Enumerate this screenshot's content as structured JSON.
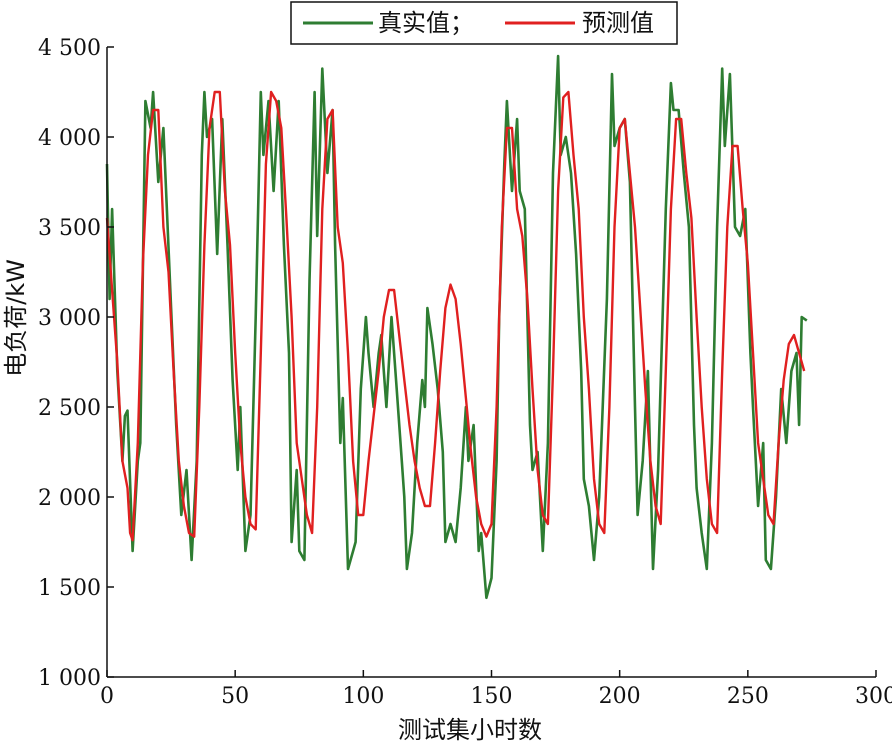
{
  "chart_data": {
    "type": "line",
    "xlabel": "测试集小时数",
    "ylabel": "电负荷/kW",
    "xlim": [
      0,
      300
    ],
    "ylim": [
      1000,
      4500
    ],
    "x_ticks": [
      0,
      50,
      100,
      150,
      200,
      250,
      300
    ],
    "x_tick_labels": [
      "0",
      "50",
      "100",
      "150",
      "200",
      "250",
      "300"
    ],
    "y_ticks": [
      1000,
      1500,
      2000,
      2500,
      3000,
      3500,
      4000,
      4500
    ],
    "y_tick_labels": [
      "1 000",
      "1 500",
      "2 000",
      "2 500",
      "3 000",
      "3 500",
      "4 000",
      "4 500"
    ],
    "grid": false,
    "legend_position": "top-center",
    "colors": {
      "actual": "#2e7d32",
      "predicted": "#e02020",
      "axis": "#111111"
    },
    "series": [
      {
        "name": "真实值；",
        "color": "#2e7d32",
        "keypoints": [
          [
            0,
            3850
          ],
          [
            1,
            3100
          ],
          [
            2,
            3600
          ],
          [
            4,
            2700
          ],
          [
            6,
            2200
          ],
          [
            7,
            2450
          ],
          [
            8,
            2480
          ],
          [
            10,
            1700
          ],
          [
            12,
            2200
          ],
          [
            13,
            2300
          ],
          [
            15,
            4200
          ],
          [
            17,
            4050
          ],
          [
            18,
            4250
          ],
          [
            20,
            3750
          ],
          [
            22,
            4050
          ],
          [
            25,
            3050
          ],
          [
            27,
            2400
          ],
          [
            29,
            1900
          ],
          [
            31,
            2150
          ],
          [
            33,
            1650
          ],
          [
            35,
            2200
          ],
          [
            37,
            3900
          ],
          [
            38,
            4250
          ],
          [
            39,
            4000
          ],
          [
            41,
            4100
          ],
          [
            43,
            3350
          ],
          [
            45,
            4100
          ],
          [
            47,
            3400
          ],
          [
            49,
            2650
          ],
          [
            51,
            2150
          ],
          [
            52,
            2500
          ],
          [
            54,
            1700
          ],
          [
            56,
            1900
          ],
          [
            58,
            3000
          ],
          [
            60,
            4250
          ],
          [
            61,
            3900
          ],
          [
            63,
            4200
          ],
          [
            65,
            3700
          ],
          [
            67,
            4200
          ],
          [
            69,
            3400
          ],
          [
            71,
            2800
          ],
          [
            72,
            1750
          ],
          [
            74,
            2150
          ],
          [
            75,
            1700
          ],
          [
            77,
            1650
          ],
          [
            79,
            3200
          ],
          [
            81,
            4250
          ],
          [
            82,
            3450
          ],
          [
            84,
            4380
          ],
          [
            86,
            3800
          ],
          [
            88,
            4150
          ],
          [
            89,
            3400
          ],
          [
            91,
            2300
          ],
          [
            92,
            2550
          ],
          [
            94,
            1600
          ],
          [
            96,
            1700
          ],
          [
            97,
            1750
          ],
          [
            99,
            2600
          ],
          [
            101,
            3000
          ],
          [
            102,
            2800
          ],
          [
            104,
            2500
          ],
          [
            106,
            2800
          ],
          [
            107,
            2900
          ],
          [
            108,
            2700
          ],
          [
            109,
            2500
          ],
          [
            111,
            3000
          ],
          [
            113,
            2600
          ],
          [
            115,
            2200
          ],
          [
            116,
            2000
          ],
          [
            117,
            1600
          ],
          [
            119,
            1800
          ],
          [
            121,
            2300
          ],
          [
            123,
            2650
          ],
          [
            124,
            2500
          ],
          [
            125,
            3050
          ],
          [
            127,
            2850
          ],
          [
            129,
            2600
          ],
          [
            131,
            2250
          ],
          [
            132,
            1750
          ],
          [
            134,
            1850
          ],
          [
            136,
            1750
          ],
          [
            138,
            2050
          ],
          [
            140,
            2500
          ],
          [
            141,
            2200
          ],
          [
            143,
            2400
          ],
          [
            145,
            1700
          ],
          [
            146,
            1800
          ],
          [
            148,
            1440
          ],
          [
            150,
            1550
          ],
          [
            152,
            2200
          ],
          [
            153,
            3000
          ],
          [
            155,
            3850
          ],
          [
            156,
            4200
          ],
          [
            158,
            3700
          ],
          [
            160,
            4100
          ],
          [
            161,
            3700
          ],
          [
            163,
            3600
          ],
          [
            165,
            2400
          ],
          [
            166,
            2150
          ],
          [
            168,
            2250
          ],
          [
            170,
            1700
          ],
          [
            172,
            2300
          ],
          [
            174,
            3800
          ],
          [
            176,
            4450
          ],
          [
            177,
            3900
          ],
          [
            179,
            4000
          ],
          [
            181,
            3800
          ],
          [
            183,
            3350
          ],
          [
            185,
            2700
          ],
          [
            186,
            2100
          ],
          [
            188,
            1950
          ],
          [
            190,
            1650
          ],
          [
            192,
            2000
          ],
          [
            195,
            3100
          ],
          [
            197,
            4350
          ],
          [
            198,
            3950
          ],
          [
            200,
            4050
          ],
          [
            202,
            4100
          ],
          [
            204,
            3750
          ],
          [
            206,
            2500
          ],
          [
            207,
            1900
          ],
          [
            209,
            2200
          ],
          [
            211,
            2700
          ],
          [
            213,
            1600
          ],
          [
            215,
            2150
          ],
          [
            218,
            3600
          ],
          [
            220,
            4300
          ],
          [
            221,
            4150
          ],
          [
            223,
            4150
          ],
          [
            225,
            3800
          ],
          [
            227,
            3500
          ],
          [
            229,
            2400
          ],
          [
            230,
            2050
          ],
          [
            232,
            1800
          ],
          [
            234,
            1600
          ],
          [
            236,
            2300
          ],
          [
            238,
            3500
          ],
          [
            240,
            4380
          ],
          [
            241,
            3950
          ],
          [
            243,
            4350
          ],
          [
            245,
            3500
          ],
          [
            247,
            3450
          ],
          [
            249,
            3600
          ],
          [
            251,
            2800
          ],
          [
            252,
            2500
          ],
          [
            254,
            1950
          ],
          [
            256,
            2300
          ],
          [
            257,
            1650
          ],
          [
            259,
            1600
          ],
          [
            261,
            2000
          ],
          [
            263,
            2600
          ],
          [
            265,
            2300
          ],
          [
            267,
            2700
          ],
          [
            269,
            2800
          ],
          [
            270,
            2400
          ],
          [
            271,
            3000
          ],
          [
            273,
            2980
          ]
        ]
      },
      {
        "name": "预测值",
        "color": "#e02020",
        "keypoints": [
          [
            0,
            3550
          ],
          [
            2,
            3150
          ],
          [
            4,
            2750
          ],
          [
            6,
            2200
          ],
          [
            8,
            2050
          ],
          [
            9,
            1800
          ],
          [
            10,
            1760
          ],
          [
            12,
            2300
          ],
          [
            14,
            3300
          ],
          [
            16,
            3900
          ],
          [
            18,
            4150
          ],
          [
            20,
            4150
          ],
          [
            22,
            3500
          ],
          [
            24,
            3250
          ],
          [
            26,
            2700
          ],
          [
            28,
            2200
          ],
          [
            30,
            1950
          ],
          [
            32,
            1800
          ],
          [
            34,
            1780
          ],
          [
            36,
            2500
          ],
          [
            38,
            3400
          ],
          [
            40,
            4050
          ],
          [
            42,
            4250
          ],
          [
            44,
            4250
          ],
          [
            46,
            3700
          ],
          [
            48,
            3400
          ],
          [
            50,
            2800
          ],
          [
            52,
            2300
          ],
          [
            54,
            2000
          ],
          [
            56,
            1850
          ],
          [
            58,
            1820
          ],
          [
            60,
            2800
          ],
          [
            62,
            3850
          ],
          [
            64,
            4250
          ],
          [
            66,
            4200
          ],
          [
            68,
            4050
          ],
          [
            70,
            3550
          ],
          [
            72,
            3000
          ],
          [
            74,
            2300
          ],
          [
            76,
            2100
          ],
          [
            78,
            1900
          ],
          [
            80,
            1800
          ],
          [
            82,
            2500
          ],
          [
            84,
            3600
          ],
          [
            86,
            4100
          ],
          [
            88,
            4150
          ],
          [
            90,
            3500
          ],
          [
            92,
            3300
          ],
          [
            94,
            2800
          ],
          [
            96,
            2200
          ],
          [
            98,
            1900
          ],
          [
            100,
            1900
          ],
          [
            102,
            2200
          ],
          [
            104,
            2450
          ],
          [
            106,
            2700
          ],
          [
            108,
            3000
          ],
          [
            110,
            3150
          ],
          [
            112,
            3150
          ],
          [
            114,
            2900
          ],
          [
            116,
            2650
          ],
          [
            118,
            2400
          ],
          [
            120,
            2200
          ],
          [
            122,
            2050
          ],
          [
            124,
            1950
          ],
          [
            126,
            1950
          ],
          [
            128,
            2300
          ],
          [
            130,
            2700
          ],
          [
            132,
            3050
          ],
          [
            134,
            3180
          ],
          [
            136,
            3100
          ],
          [
            138,
            2850
          ],
          [
            140,
            2550
          ],
          [
            142,
            2250
          ],
          [
            144,
            2000
          ],
          [
            146,
            1850
          ],
          [
            148,
            1780
          ],
          [
            150,
            1850
          ],
          [
            152,
            2500
          ],
          [
            154,
            3500
          ],
          [
            156,
            4050
          ],
          [
            158,
            4050
          ],
          [
            160,
            3600
          ],
          [
            162,
            3450
          ],
          [
            164,
            3100
          ],
          [
            166,
            2600
          ],
          [
            168,
            2150
          ],
          [
            170,
            1900
          ],
          [
            172,
            1850
          ],
          [
            174,
            2700
          ],
          [
            176,
            3700
          ],
          [
            178,
            4220
          ],
          [
            180,
            4250
          ],
          [
            182,
            3900
          ],
          [
            184,
            3600
          ],
          [
            186,
            3000
          ],
          [
            188,
            2600
          ],
          [
            190,
            2100
          ],
          [
            192,
            1850
          ],
          [
            194,
            1800
          ],
          [
            196,
            2500
          ],
          [
            198,
            3500
          ],
          [
            200,
            4050
          ],
          [
            202,
            4100
          ],
          [
            204,
            3800
          ],
          [
            206,
            3500
          ],
          [
            208,
            3050
          ],
          [
            210,
            2600
          ],
          [
            212,
            2200
          ],
          [
            214,
            1950
          ],
          [
            216,
            1850
          ],
          [
            218,
            2700
          ],
          [
            220,
            3600
          ],
          [
            222,
            4100
          ],
          [
            224,
            4100
          ],
          [
            226,
            3800
          ],
          [
            228,
            3550
          ],
          [
            230,
            3000
          ],
          [
            232,
            2500
          ],
          [
            234,
            2100
          ],
          [
            236,
            1850
          ],
          [
            238,
            1800
          ],
          [
            240,
            2700
          ],
          [
            242,
            3500
          ],
          [
            244,
            3950
          ],
          [
            246,
            3950
          ],
          [
            248,
            3600
          ],
          [
            250,
            3300
          ],
          [
            252,
            2800
          ],
          [
            254,
            2300
          ],
          [
            256,
            2100
          ],
          [
            258,
            1900
          ],
          [
            260,
            1850
          ],
          [
            262,
            2300
          ],
          [
            264,
            2650
          ],
          [
            266,
            2850
          ],
          [
            268,
            2900
          ],
          [
            270,
            2800
          ],
          [
            272,
            2700
          ]
        ]
      }
    ]
  }
}
